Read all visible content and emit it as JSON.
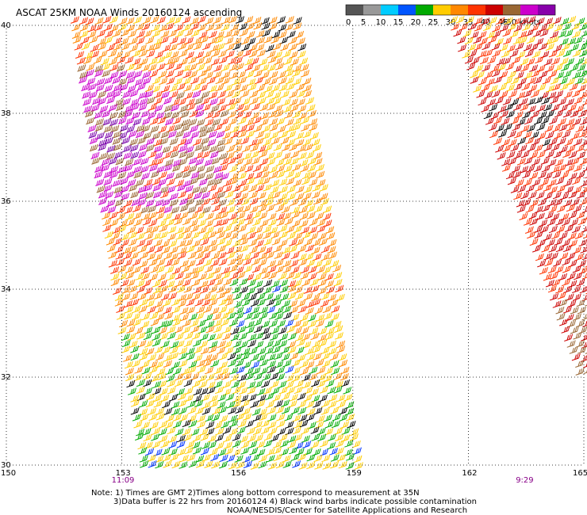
{
  "title": "ASCAT 25KM NOAA Winds 20160124 ascending",
  "legend": {
    "ticks": [
      "0",
      "5",
      "10",
      "15",
      "20",
      "25",
      "30",
      "35",
      "40",
      "45",
      ">50 knots"
    ],
    "colors": [
      "#555555",
      "#999999",
      "#00ccff",
      "#0055ff",
      "#00aa00",
      "#ffcc00",
      "#ff8800",
      "#ff3300",
      "#cc0000",
      "#996633",
      "#cc00cc",
      "#8800aa"
    ]
  },
  "map": {
    "lon_range": [
      150,
      165
    ],
    "lat_range": [
      30,
      40
    ],
    "lon_labels": [
      "150",
      "153",
      "156",
      "159",
      "162",
      "165"
    ],
    "lat_labels": [
      "40",
      "38",
      "36",
      "34",
      "32",
      "30"
    ],
    "gridlines": "dotted",
    "time_labels": [
      {
        "text": "11:09",
        "lon": 153
      },
      {
        "text": "9:29",
        "lon": 163.5
      }
    ],
    "time_color": "#880088"
  },
  "notes": {
    "line1": "Note: 1) Times are GMT 2)Times along bottom correspond to measurement at 35N",
    "line2": "3)Data buffer is 22 hrs from 20160124 4) Black wind barbs indicate possible contamination",
    "line3": "NOAA/NESDIS/Center for Satellite Applications and Research"
  }
}
